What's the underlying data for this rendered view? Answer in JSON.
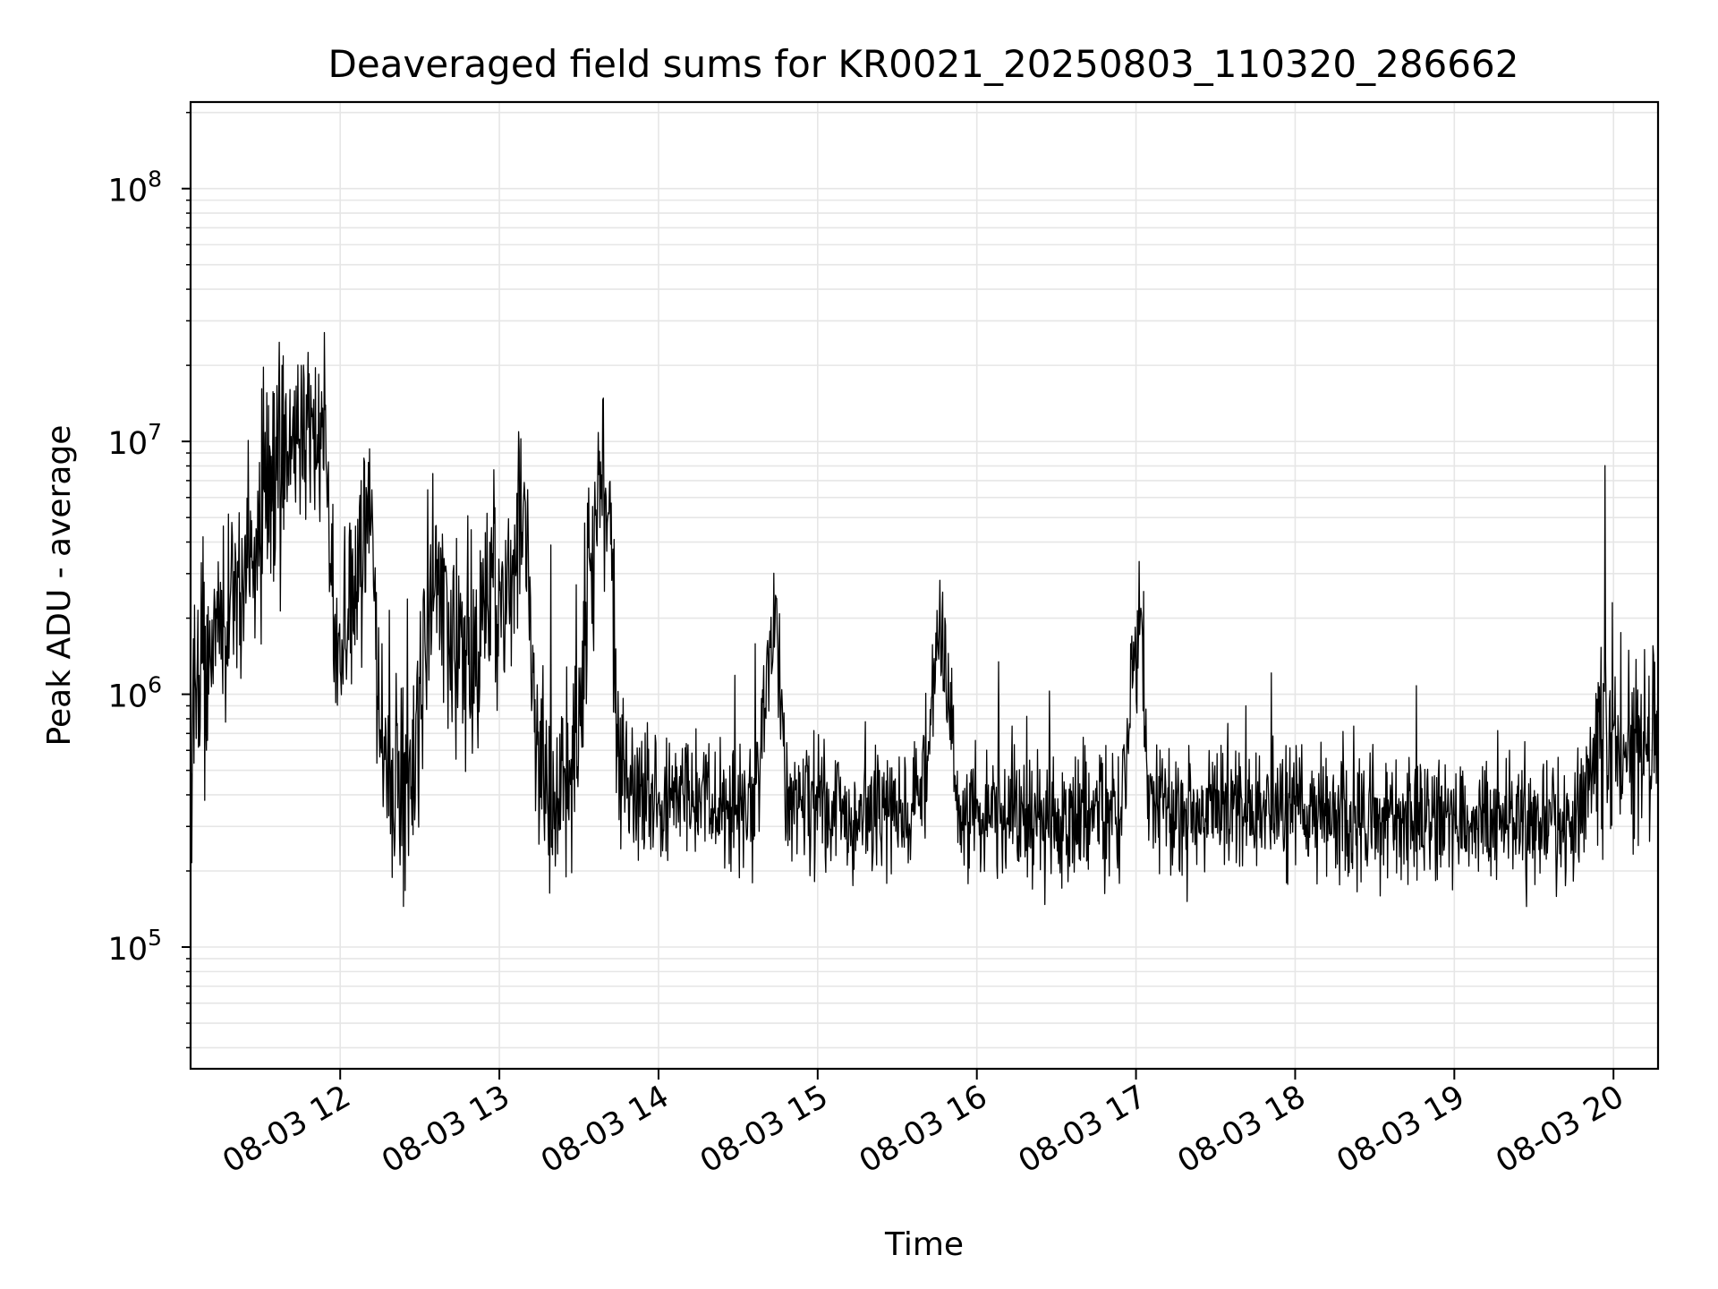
{
  "chart_data": {
    "type": "line",
    "title": "Deaveraged field sums for KR0021_20250803_110320_286662",
    "xlabel": "Time",
    "ylabel": "Peak ADU - average",
    "yscale": "log",
    "ylim": [
      33000,
      220000000
    ],
    "xlim_hours": [
      11.06,
      20.28
    ],
    "x_ticks": [
      {
        "hour": 12,
        "label": "08-03 12"
      },
      {
        "hour": 13,
        "label": "08-03 13"
      },
      {
        "hour": 14,
        "label": "08-03 14"
      },
      {
        "hour": 15,
        "label": "08-03 15"
      },
      {
        "hour": 16,
        "label": "08-03 16"
      },
      {
        "hour": 17,
        "label": "08-03 17"
      },
      {
        "hour": 18,
        "label": "08-03 18"
      },
      {
        "hour": 19,
        "label": "08-03 19"
      },
      {
        "hour": 20,
        "label": "08-03 20"
      }
    ],
    "y_ticks": [
      {
        "exp": 5,
        "value": 100000
      },
      {
        "exp": 6,
        "value": 1000000
      },
      {
        "exp": 7,
        "value": 10000000
      },
      {
        "exp": 8,
        "value": 100000000
      }
    ],
    "grid": true,
    "line_color": "#000000",
    "series": [
      {
        "x_hours": [
          11.06,
          11.15,
          11.3,
          11.45,
          11.6,
          11.7,
          11.8,
          11.9,
          12.0,
          12.1,
          12.2,
          12.25,
          12.3,
          12.45,
          12.55,
          12.7,
          12.85,
          12.95,
          13.05,
          13.15,
          13.25,
          13.35,
          13.5,
          13.6,
          13.7,
          13.75,
          13.85,
          14.0,
          14.2,
          14.4,
          14.6,
          14.74,
          14.8,
          15.0,
          15.2,
          15.4,
          15.6,
          15.7,
          15.76,
          15.82,
          15.88,
          16.0,
          16.3,
          16.6,
          16.9,
          17.03,
          17.08,
          17.15,
          17.4,
          17.7,
          18.0,
          18.3,
          18.6,
          18.9,
          19.2,
          19.5,
          19.8,
          19.92,
          19.97,
          20.05,
          20.15,
          20.28
        ],
        "y": [
          600000,
          1200000,
          2000000,
          4000000,
          8000000,
          15000000,
          12000000,
          9000000,
          1200000,
          3000000,
          6000000,
          600000,
          450000,
          400000,
          2500000,
          1500000,
          1200000,
          3000000,
          1800000,
          6000000,
          450000,
          350000,
          800000,
          5000000,
          6000000,
          500000,
          400000,
          380000,
          420000,
          360000,
          380000,
          2500000,
          400000,
          380000,
          330000,
          360000,
          340000,
          600000,
          2000000,
          1200000,
          330000,
          320000,
          330000,
          340000,
          350000,
          2500000,
          400000,
          370000,
          340000,
          350000,
          360000,
          330000,
          320000,
          310000,
          320000,
          320000,
          310000,
          800000,
          700000,
          620000,
          650000,
          700000
        ]
      }
    ]
  }
}
